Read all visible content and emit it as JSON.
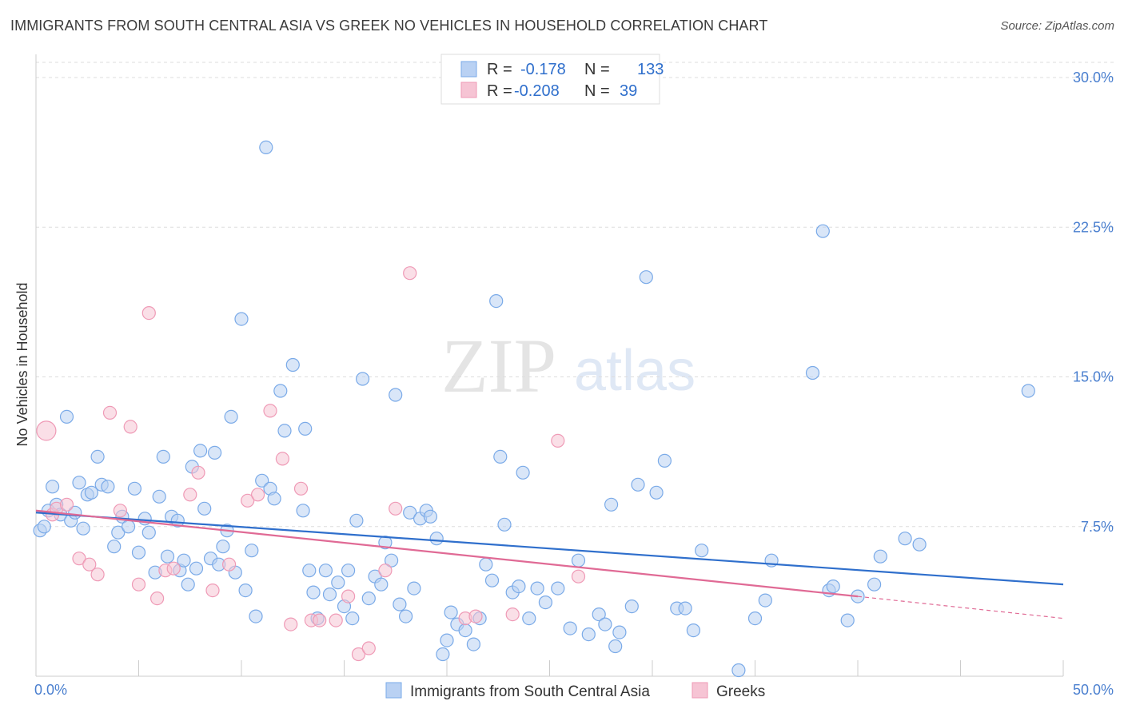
{
  "header": {
    "title": "IMMIGRANTS FROM SOUTH CENTRAL ASIA VS GREEK NO VEHICLES IN HOUSEHOLD CORRELATION CHART",
    "source": "Source: ZipAtlas.com"
  },
  "watermark": {
    "zip": "ZIP",
    "atlas": "atlas"
  },
  "chart_data": {
    "type": "scatter",
    "ylabel": "No Vehicles in Household",
    "xlim": [
      0,
      50
    ],
    "ylim": [
      0,
      30
    ],
    "x_tick_labels": [
      "0.0%",
      "50.0%"
    ],
    "y_ticks": [
      7.5,
      15.0,
      22.5,
      30.0
    ],
    "y_tick_labels": [
      "7.5%",
      "15.0%",
      "22.5%",
      "30.0%"
    ],
    "grid": true,
    "legend": {
      "position": "top-center",
      "entries": [
        {
          "r_label": "R =",
          "r_value": "-0.178",
          "n_label": "N =",
          "n_value": "133"
        },
        {
          "r_label": "R =",
          "r_value": "-0.208",
          "n_label": "N =",
          "n_value": "39"
        }
      ]
    },
    "series": [
      {
        "name": "Immigrants from South Central Asia",
        "color": "#7aaae8",
        "fill": "#b9d1f3",
        "trend": {
          "x": [
            0,
            50
          ],
          "y": [
            8.2,
            4.6
          ],
          "color": "#2f6fcc"
        },
        "points": [
          [
            0.2,
            7.3
          ],
          [
            0.4,
            7.5
          ],
          [
            0.6,
            8.3
          ],
          [
            0.8,
            9.5
          ],
          [
            1.0,
            8.6
          ],
          [
            1.2,
            8.1
          ],
          [
            1.5,
            13.0
          ],
          [
            1.7,
            7.8
          ],
          [
            1.9,
            8.2
          ],
          [
            2.1,
            9.7
          ],
          [
            2.3,
            7.4
          ],
          [
            2.5,
            9.1
          ],
          [
            2.7,
            9.2
          ],
          [
            3.0,
            11.0
          ],
          [
            3.2,
            9.6
          ],
          [
            3.5,
            9.5
          ],
          [
            3.8,
            6.5
          ],
          [
            4.0,
            7.2
          ],
          [
            4.2,
            8.0
          ],
          [
            4.5,
            7.5
          ],
          [
            4.8,
            9.4
          ],
          [
            5.0,
            6.2
          ],
          [
            5.3,
            7.9
          ],
          [
            5.5,
            7.2
          ],
          [
            5.8,
            5.2
          ],
          [
            6.0,
            9.0
          ],
          [
            6.2,
            11.0
          ],
          [
            6.4,
            6.0
          ],
          [
            6.6,
            8.0
          ],
          [
            6.9,
            7.8
          ],
          [
            7.0,
            5.3
          ],
          [
            7.2,
            5.8
          ],
          [
            7.4,
            4.6
          ],
          [
            7.6,
            10.5
          ],
          [
            7.8,
            5.4
          ],
          [
            8.0,
            11.3
          ],
          [
            8.2,
            8.4
          ],
          [
            8.5,
            5.9
          ],
          [
            8.7,
            11.2
          ],
          [
            8.9,
            5.6
          ],
          [
            9.1,
            6.5
          ],
          [
            9.3,
            7.3
          ],
          [
            9.5,
            13.0
          ],
          [
            9.7,
            5.2
          ],
          [
            10.0,
            17.9
          ],
          [
            10.2,
            4.3
          ],
          [
            10.5,
            6.3
          ],
          [
            10.7,
            3.0
          ],
          [
            11.0,
            9.8
          ],
          [
            11.2,
            26.5
          ],
          [
            11.4,
            9.4
          ],
          [
            11.6,
            8.9
          ],
          [
            11.9,
            14.3
          ],
          [
            12.1,
            12.3
          ],
          [
            12.5,
            15.6
          ],
          [
            13.0,
            8.3
          ],
          [
            13.1,
            12.4
          ],
          [
            13.3,
            5.3
          ],
          [
            13.5,
            4.2
          ],
          [
            13.7,
            2.9
          ],
          [
            14.1,
            5.3
          ],
          [
            14.3,
            4.1
          ],
          [
            14.7,
            4.7
          ],
          [
            15.0,
            3.5
          ],
          [
            15.2,
            5.3
          ],
          [
            15.4,
            2.9
          ],
          [
            15.6,
            7.8
          ],
          [
            15.9,
            14.9
          ],
          [
            16.2,
            3.9
          ],
          [
            16.5,
            5.0
          ],
          [
            16.8,
            4.6
          ],
          [
            17.0,
            6.7
          ],
          [
            17.3,
            5.8
          ],
          [
            17.5,
            14.1
          ],
          [
            17.7,
            3.6
          ],
          [
            18.0,
            3.0
          ],
          [
            18.2,
            8.2
          ],
          [
            18.4,
            4.4
          ],
          [
            18.7,
            7.9
          ],
          [
            19.0,
            8.3
          ],
          [
            19.2,
            8.0
          ],
          [
            19.5,
            6.9
          ],
          [
            19.8,
            1.1
          ],
          [
            20.0,
            1.8
          ],
          [
            20.2,
            3.2
          ],
          [
            20.5,
            2.6
          ],
          [
            20.9,
            2.3
          ],
          [
            21.3,
            1.6
          ],
          [
            21.6,
            2.9
          ],
          [
            21.9,
            5.6
          ],
          [
            22.2,
            4.8
          ],
          [
            22.4,
            18.8
          ],
          [
            22.6,
            11.0
          ],
          [
            22.8,
            7.6
          ],
          [
            23.2,
            4.2
          ],
          [
            23.5,
            4.5
          ],
          [
            23.7,
            10.2
          ],
          [
            24.0,
            2.9
          ],
          [
            24.4,
            4.4
          ],
          [
            24.8,
            3.7
          ],
          [
            25.4,
            4.4
          ],
          [
            26.0,
            2.4
          ],
          [
            26.4,
            5.8
          ],
          [
            26.9,
            2.1
          ],
          [
            27.4,
            3.1
          ],
          [
            27.7,
            2.6
          ],
          [
            28.0,
            8.6
          ],
          [
            28.2,
            1.5
          ],
          [
            28.4,
            2.2
          ],
          [
            29.0,
            3.5
          ],
          [
            29.3,
            9.6
          ],
          [
            29.7,
            20.0
          ],
          [
            30.2,
            9.2
          ],
          [
            30.6,
            10.8
          ],
          [
            31.2,
            3.4
          ],
          [
            31.6,
            3.4
          ],
          [
            32.0,
            2.3
          ],
          [
            32.4,
            6.3
          ],
          [
            34.2,
            0.3
          ],
          [
            35.0,
            2.9
          ],
          [
            35.5,
            3.8
          ],
          [
            35.8,
            5.8
          ],
          [
            37.8,
            15.2
          ],
          [
            38.3,
            22.3
          ],
          [
            38.6,
            4.3
          ],
          [
            38.8,
            4.5
          ],
          [
            39.5,
            2.8
          ],
          [
            40.0,
            4.0
          ],
          [
            40.8,
            4.6
          ],
          [
            41.1,
            6.0
          ],
          [
            42.3,
            6.9
          ],
          [
            43.0,
            6.6
          ],
          [
            48.3,
            14.3
          ]
        ]
      },
      {
        "name": "Greeks",
        "color": "#ef9ab6",
        "fill": "#f6c4d4",
        "trend": {
          "x": [
            0,
            40
          ],
          "y": [
            8.3,
            4.0
          ],
          "dash_x": [
            40,
            50
          ],
          "dash_y": [
            4.0,
            2.9
          ],
          "color": "#e06a95"
        },
        "points": [
          [
            0.5,
            12.3
          ],
          [
            0.8,
            8.1
          ],
          [
            1.0,
            8.4
          ],
          [
            1.5,
            8.6
          ],
          [
            2.1,
            5.9
          ],
          [
            2.6,
            5.6
          ],
          [
            3.0,
            5.1
          ],
          [
            3.6,
            13.2
          ],
          [
            4.1,
            8.3
          ],
          [
            4.6,
            12.5
          ],
          [
            5.0,
            4.6
          ],
          [
            5.5,
            18.2
          ],
          [
            5.9,
            3.9
          ],
          [
            6.3,
            5.3
          ],
          [
            6.7,
            5.4
          ],
          [
            7.5,
            9.1
          ],
          [
            7.9,
            10.2
          ],
          [
            8.6,
            4.3
          ],
          [
            9.4,
            5.6
          ],
          [
            10.3,
            8.8
          ],
          [
            10.8,
            9.1
          ],
          [
            11.4,
            13.3
          ],
          [
            12.0,
            10.9
          ],
          [
            12.4,
            2.6
          ],
          [
            12.9,
            9.4
          ],
          [
            13.4,
            2.8
          ],
          [
            13.8,
            2.8
          ],
          [
            14.6,
            2.8
          ],
          [
            15.2,
            4.0
          ],
          [
            15.7,
            1.1
          ],
          [
            16.2,
            1.4
          ],
          [
            17.0,
            5.3
          ],
          [
            17.5,
            8.4
          ],
          [
            18.2,
            20.2
          ],
          [
            20.9,
            2.9
          ],
          [
            21.4,
            3.0
          ],
          [
            23.2,
            3.1
          ],
          [
            25.4,
            11.8
          ],
          [
            26.4,
            5.0
          ]
        ]
      }
    ]
  },
  "bottom_legend": [
    {
      "label": "Immigrants from South Central Asia"
    },
    {
      "label": "Greeks"
    }
  ]
}
